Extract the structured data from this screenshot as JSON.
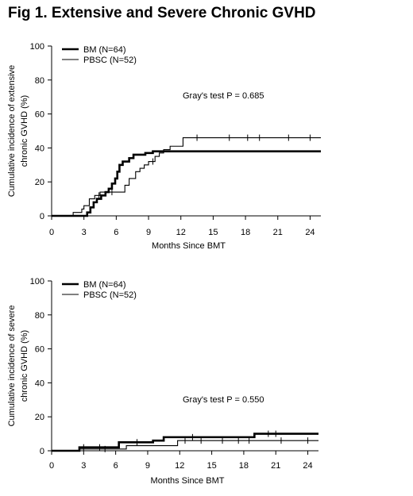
{
  "figure_title": "Fig 1. Extensive and Severe Chronic GVHD",
  "chart_data": [
    {
      "type": "line",
      "title": "",
      "xlabel": "Months Since BMT",
      "ylabel_lines": [
        "Cumulative incidence of extensive",
        "chronic GVHD (%)"
      ],
      "xlim": [
        0,
        25
      ],
      "ylim": [
        0,
        100
      ],
      "xticks": [
        0,
        3,
        6,
        9,
        12,
        15,
        18,
        21,
        24
      ],
      "yticks": [
        0,
        20,
        40,
        60,
        80,
        100
      ],
      "grid": false,
      "legend_position": "top-left",
      "annotation": "Gray's test P = 0.685",
      "series": [
        {
          "name": "BM (N=64)",
          "style": "thick",
          "color": "#000000",
          "points": [
            [
              0,
              0
            ],
            [
              3,
              0
            ],
            [
              3.3,
              2
            ],
            [
              3.6,
              5
            ],
            [
              3.9,
              8
            ],
            [
              4.2,
              10
            ],
            [
              4.6,
              12
            ],
            [
              5.0,
              14
            ],
            [
              5.3,
              16
            ],
            [
              5.6,
              19
            ],
            [
              5.9,
              22
            ],
            [
              6.1,
              26
            ],
            [
              6.3,
              30
            ],
            [
              6.6,
              32
            ],
            [
              7.2,
              34
            ],
            [
              7.6,
              36
            ],
            [
              8.7,
              37
            ],
            [
              9.4,
              38
            ],
            [
              25,
              38
            ]
          ],
          "censor_x": []
        },
        {
          "name": "PBSC (N=52)",
          "style": "thin",
          "color": "#000000",
          "points": [
            [
              0,
              0
            ],
            [
              1.8,
              0
            ],
            [
              2.0,
              2
            ],
            [
              2.8,
              4
            ],
            [
              3.0,
              6
            ],
            [
              3.5,
              10
            ],
            [
              4.0,
              12
            ],
            [
              4.5,
              14
            ],
            [
              6.2,
              14
            ],
            [
              6.8,
              18
            ],
            [
              7.2,
              22
            ],
            [
              7.8,
              26
            ],
            [
              8.2,
              28
            ],
            [
              8.6,
              30
            ],
            [
              9.0,
              32
            ],
            [
              9.6,
              35
            ],
            [
              10.0,
              37
            ],
            [
              10.4,
              39
            ],
            [
              11.0,
              41
            ],
            [
              12.2,
              46
            ],
            [
              25,
              46
            ]
          ],
          "censor_x": [
            4.4,
            5.6,
            9.4,
            13.5,
            16.5,
            18.2,
            19.3,
            22.0,
            24.0
          ]
        }
      ]
    },
    {
      "type": "line",
      "title": "",
      "xlabel": "Months Since BMT",
      "ylabel_lines": [
        "Cumulative incidence of severe",
        "chronic GVHD (%)"
      ],
      "xlim": [
        0,
        25
      ],
      "ylim": [
        0,
        100
      ],
      "xticks": [
        0,
        3,
        6,
        9,
        12,
        15,
        18,
        21,
        24
      ],
      "yticks": [
        0,
        20,
        40,
        60,
        80,
        100
      ],
      "grid": false,
      "legend_position": "top-left",
      "annotation": "Gray's test P = 0.550",
      "series": [
        {
          "name": "BM (N=64)",
          "style": "thick",
          "color": "#000000",
          "points": [
            [
              0,
              0
            ],
            [
              2.6,
              0
            ],
            [
              2.6,
              2
            ],
            [
              6.3,
              2
            ],
            [
              6.3,
              5
            ],
            [
              9.5,
              5
            ],
            [
              9.5,
              6
            ],
            [
              10.5,
              6
            ],
            [
              10.5,
              8
            ],
            [
              19.0,
              8
            ],
            [
              19.0,
              10
            ],
            [
              25,
              10
            ]
          ],
          "censor_x": [
            3.0,
            4.5,
            8.0,
            13.2,
            20.3,
            21.0
          ]
        },
        {
          "name": "PBSC (N=52)",
          "style": "thin",
          "color": "#000000",
          "points": [
            [
              0,
              0
            ],
            [
              2.6,
              0
            ],
            [
              2.6,
              1
            ],
            [
              7.0,
              1
            ],
            [
              7.0,
              3
            ],
            [
              11.8,
              3
            ],
            [
              11.8,
              6
            ],
            [
              25,
              6
            ]
          ],
          "censor_x": [
            5.0,
            12.5,
            14.0,
            16.0,
            17.5,
            18.5,
            21.5,
            24.0
          ]
        }
      ]
    }
  ]
}
